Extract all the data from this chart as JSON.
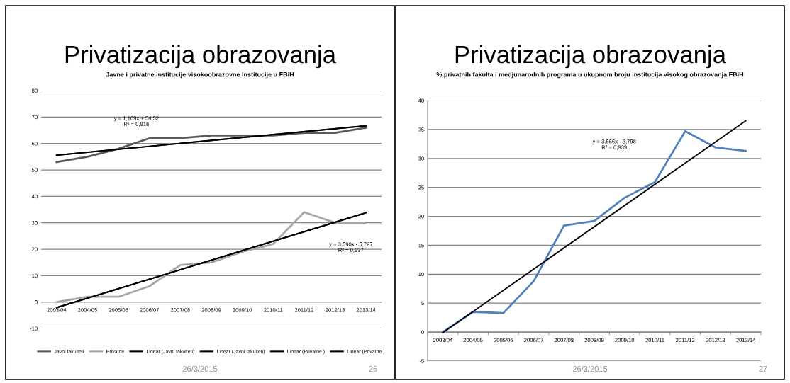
{
  "chart_data": [
    {
      "type": "line",
      "title": "Privatizacija obrazovanja",
      "subtitle": "Javne i privatne institucije visokoobrazovne institucije u FBiH",
      "categories": [
        "2003/04",
        "2004/05",
        "2005/06",
        "2006/07",
        "2007/08",
        "2008/09",
        "2009/10",
        "2010/11",
        "2011/12",
        "2012/13",
        "2013/14"
      ],
      "series": [
        {
          "name": "Javni fakulteti",
          "color": "#595959",
          "values": [
            53,
            55,
            58,
            62,
            62,
            63,
            63,
            63,
            64,
            64,
            66
          ]
        },
        {
          "name": "Privatne",
          "color": "#a6a6a6",
          "values": [
            0,
            2,
            2,
            6,
            14,
            15,
            19,
            22,
            34,
            30,
            30
          ]
        },
        {
          "name": "Linear (Javni fakulteti)",
          "color": "#000000",
          "type": "line",
          "x": [
            "2003/04",
            "2013/14"
          ],
          "values": [
            55.6,
            66.7
          ]
        },
        {
          "name": "Linear (Javni fakulteti)",
          "color": "#000000",
          "type": "line",
          "x": [
            "2003/04",
            "2013/14"
          ],
          "values": [
            55.6,
            66.7
          ]
        },
        {
          "name": "Linear (Privatne )",
          "color": "#000000",
          "type": "line",
          "x": [
            "2003/04",
            "2013/14"
          ],
          "values": [
            -2.1,
            33.8
          ]
        },
        {
          "name": "Linear (Privatne )",
          "color": "#000000",
          "type": "line",
          "x": [
            "2003/04",
            "2013/14"
          ],
          "values": [
            -2.1,
            33.8
          ]
        }
      ],
      "ylim": [
        -10,
        80
      ],
      "yticks": [
        -10,
        0,
        10,
        20,
        30,
        40,
        50,
        60,
        70,
        80
      ],
      "grid": "y",
      "legend": "bottom",
      "annotations": [
        "y = 1,109x + 54,52\nR² = 0,816",
        "y = 3,590x - 5,727\nR² = 0,937",
        "26/3/2015",
        "26"
      ]
    },
    {
      "type": "line",
      "title": "Privatizacija obrazovanja",
      "subtitle": "% privatnih fakulta i medjunarodnih programa u ukupnom broju institucija visokog obrazovanja FBiH",
      "categories": [
        "2003/04",
        "2004/05",
        "2005/06",
        "2006/07",
        "2007/08",
        "2008/09",
        "2009/10",
        "2010/11",
        "2011/12",
        "2012/13",
        "2013/14"
      ],
      "series": [
        {
          "color": "#4f81bd",
          "values": [
            0,
            3.5,
            3.3,
            8.8,
            18.4,
            19.2,
            23.2,
            25.9,
            34.7,
            31.9,
            31.3
          ]
        },
        {
          "color": "#000000",
          "type": "line",
          "x": [
            "2003/04",
            "2013/14"
          ],
          "values": [
            -0.1,
            36.5
          ]
        }
      ],
      "ylim": [
        -5,
        40
      ],
      "yticks": [
        -5,
        0,
        5,
        10,
        15,
        20,
        25,
        30,
        35,
        40
      ],
      "grid": "y",
      "annotations": [
        "y = 3,666x - 3,798\nR² = 0,939",
        "26/3/2015",
        "27"
      ]
    }
  ]
}
